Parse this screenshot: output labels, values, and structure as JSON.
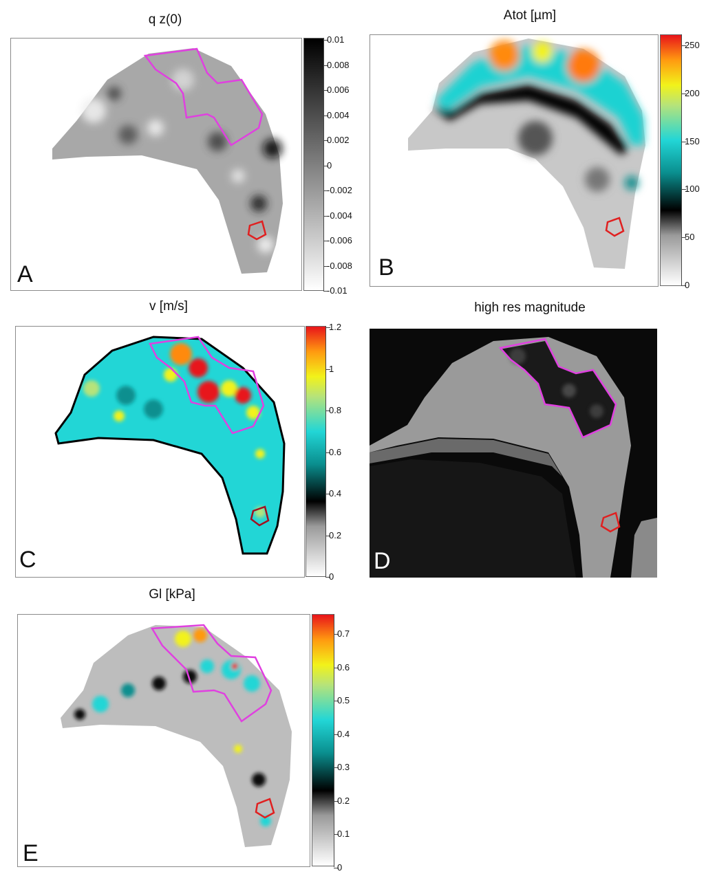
{
  "panels": {
    "A": {
      "title": "q z(0)",
      "letter": "A",
      "colorbar": {
        "colormap": "grayscale-inverted",
        "ticks": [
          "0.01",
          "0.008",
          "0.006",
          "0.004",
          "0.002",
          "0",
          "-0.002",
          "-0.004",
          "-0.006",
          "-0.008",
          "-0.01"
        ]
      }
    },
    "B": {
      "title": "Atot [µm]",
      "letter": "B",
      "colorbar": {
        "colormap": "gray-black-cyan-yellow-red",
        "ticks": [
          "250",
          "200",
          "150",
          "100",
          "50",
          "0"
        ]
      }
    },
    "C": {
      "title": "v [m/s]",
      "letter": "C",
      "colorbar": {
        "colormap": "gray-black-cyan-yellow-red",
        "ticks": [
          "1.2",
          "1",
          "0.8",
          "0.6",
          "0.4",
          "0.2",
          "0"
        ]
      }
    },
    "D": {
      "title": "high res magnitude",
      "letter": "D"
    },
    "E": {
      "title": "Gl [kPa]",
      "letter": "E",
      "colorbar": {
        "colormap": "gray-black-cyan-yellow-red",
        "ticks": [
          "0.7",
          "0.6",
          "0.5",
          "0.4",
          "0.3",
          "0.2",
          "0.1",
          "0"
        ]
      }
    }
  },
  "overlay_colors": {
    "lesion_region": "#e040e0",
    "small_region": "#e02020"
  }
}
